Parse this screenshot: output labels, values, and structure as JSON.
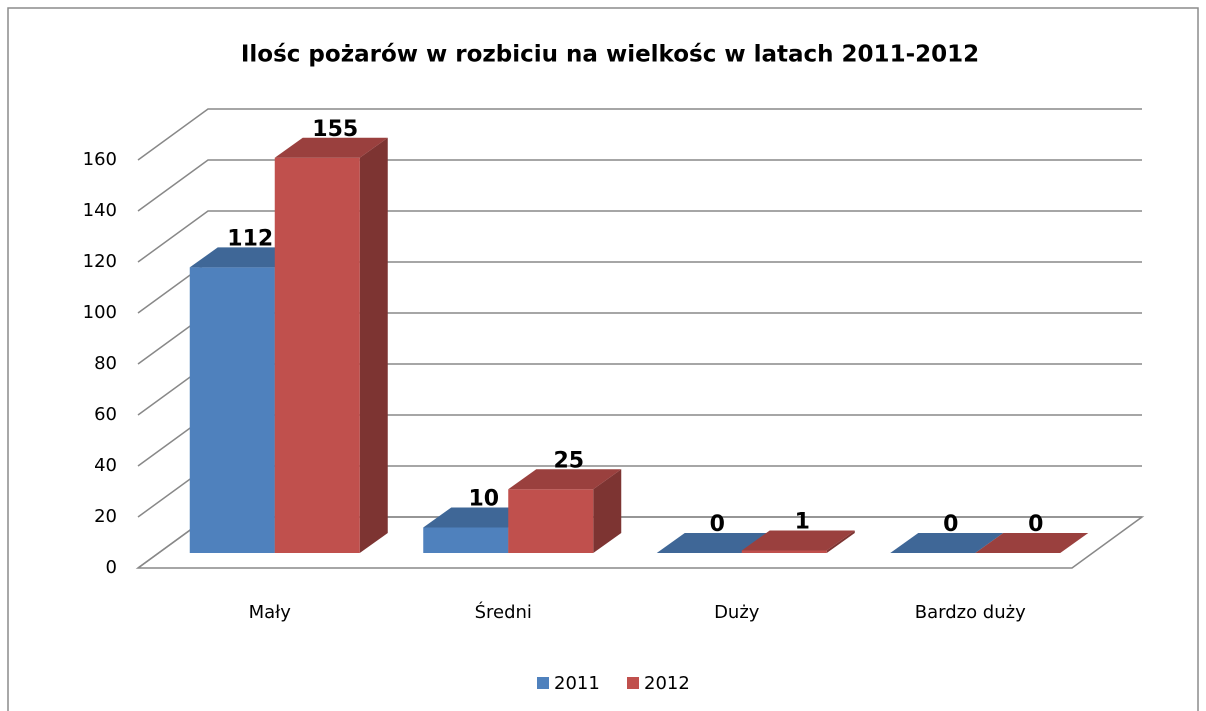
{
  "chart_data": {
    "type": "bar3d",
    "title": "Ilośc pożarów w rozbiciu  na wielkośc w latach 2011-2012",
    "categories": [
      "Mały",
      "Średni",
      "Duży",
      "Bardzo duży"
    ],
    "series": [
      {
        "name": "2011",
        "color": "#4f81bd",
        "values": [
          112,
          10,
          0,
          0
        ]
      },
      {
        "name": "2012",
        "color": "#c0504d",
        "values": [
          155,
          25,
          1,
          0
        ]
      }
    ],
    "ylim": [
      0,
      160
    ],
    "yticks": [
      0,
      20,
      40,
      60,
      80,
      100,
      120,
      140,
      160
    ],
    "grid": true,
    "legend": "bottom"
  }
}
